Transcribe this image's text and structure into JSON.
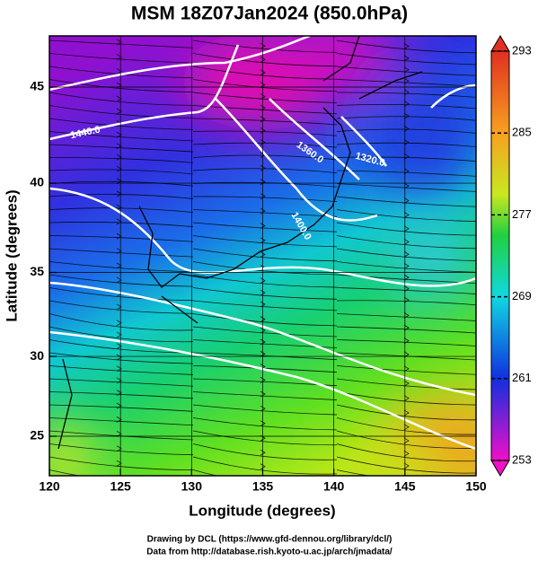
{
  "title": "MSM 18Z07Jan2024 (850.0hPa)",
  "x_axis": {
    "label": "Longitude (degrees)",
    "ticks": [
      120,
      125,
      130,
      135,
      140,
      145,
      150
    ]
  },
  "y_axis": {
    "label": "Latitude  (degrees)",
    "ticks": [
      25,
      30,
      35,
      40,
      45
    ]
  },
  "colorbar": {
    "ticks": [
      293,
      285,
      277,
      269,
      261,
      253
    ]
  },
  "contour_labels": [
    "1440.0",
    "1360.0",
    "1320.0",
    "1400.0"
  ],
  "credits": [
    "Drawing by DCL (https://www.gfd-dennou.org/library/dcl/)",
    "Data from http://database.rish.kyoto-u.ac.jp/arch/jmadata/"
  ]
}
